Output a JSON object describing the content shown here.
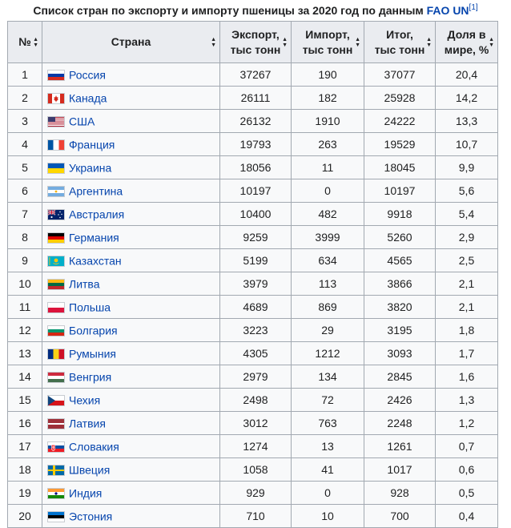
{
  "caption": {
    "title": "Список стран по экспорту и импорту пшеницы за 2020 год по данным",
    "link": "FAO UN",
    "ref": "[1]"
  },
  "headers": {
    "num": "№",
    "country": "Страна",
    "export_line1": "Экспорт,",
    "export_line2": "тыс тонн",
    "import_line1": "Импорт,",
    "import_line2": "тыс тонн",
    "total_line1": "Итог,",
    "total_line2": "тыс тонн",
    "share_line1": "Доля в",
    "share_line2": "мире, %"
  },
  "rows": [
    {
      "num": "1",
      "country": "Россия",
      "export": "37267",
      "import": "190",
      "total": "37077",
      "share": "20,4",
      "flag": "russia-flag-icon"
    },
    {
      "num": "2",
      "country": "Канада",
      "export": "26111",
      "import": "182",
      "total": "25928",
      "share": "14,2",
      "flag": "canada-flag-icon"
    },
    {
      "num": "3",
      "country": "США",
      "export": "26132",
      "import": "1910",
      "total": "24222",
      "share": "13,3",
      "flag": "usa-flag-icon"
    },
    {
      "num": "4",
      "country": "Франция",
      "export": "19793",
      "import": "263",
      "total": "19529",
      "share": "10,7",
      "flag": "france-flag-icon"
    },
    {
      "num": "5",
      "country": "Украина",
      "export": "18056",
      "import": "11",
      "total": "18045",
      "share": "9,9",
      "flag": "ukraine-flag-icon"
    },
    {
      "num": "6",
      "country": "Аргентина",
      "export": "10197",
      "import": "0",
      "total": "10197",
      "share": "5,6",
      "flag": "argentina-flag-icon"
    },
    {
      "num": "7",
      "country": "Австралия",
      "export": "10400",
      "import": "482",
      "total": "9918",
      "share": "5,4",
      "flag": "australia-flag-icon"
    },
    {
      "num": "8",
      "country": "Германия",
      "export": "9259",
      "import": "3999",
      "total": "5260",
      "share": "2,9",
      "flag": "germany-flag-icon"
    },
    {
      "num": "9",
      "country": "Казахстан",
      "export": "5199",
      "import": "634",
      "total": "4565",
      "share": "2,5",
      "flag": "kazakhstan-flag-icon"
    },
    {
      "num": "10",
      "country": "Литва",
      "export": "3979",
      "import": "113",
      "total": "3866",
      "share": "2,1",
      "flag": "lithuania-flag-icon"
    },
    {
      "num": "11",
      "country": "Польша",
      "export": "4689",
      "import": "869",
      "total": "3820",
      "share": "2,1",
      "flag": "poland-flag-icon"
    },
    {
      "num": "12",
      "country": "Болгария",
      "export": "3223",
      "import": "29",
      "total": "3195",
      "share": "1,8",
      "flag": "bulgaria-flag-icon"
    },
    {
      "num": "13",
      "country": "Румыния",
      "export": "4305",
      "import": "1212",
      "total": "3093",
      "share": "1,7",
      "flag": "romania-flag-icon"
    },
    {
      "num": "14",
      "country": "Венгрия",
      "export": "2979",
      "import": "134",
      "total": "2845",
      "share": "1,6",
      "flag": "hungary-flag-icon"
    },
    {
      "num": "15",
      "country": "Чехия",
      "export": "2498",
      "import": "72",
      "total": "2426",
      "share": "1,3",
      "flag": "czechia-flag-icon"
    },
    {
      "num": "16",
      "country": "Латвия",
      "export": "3012",
      "import": "763",
      "total": "2248",
      "share": "1,2",
      "flag": "latvia-flag-icon"
    },
    {
      "num": "17",
      "country": "Словакия",
      "export": "1274",
      "import": "13",
      "total": "1261",
      "share": "0,7",
      "flag": "slovakia-flag-icon"
    },
    {
      "num": "18",
      "country": "Швеция",
      "export": "1058",
      "import": "41",
      "total": "1017",
      "share": "0,6",
      "flag": "sweden-flag-icon"
    },
    {
      "num": "19",
      "country": "Индия",
      "export": "929",
      "import": "0",
      "total": "928",
      "share": "0,5",
      "flag": "india-flag-icon"
    },
    {
      "num": "20",
      "country": "Эстония",
      "export": "710",
      "import": "10",
      "total": "700",
      "share": "0,4",
      "flag": "estonia-flag-icon"
    }
  ],
  "colors": {
    "link": "#0645ad",
    "header_bg": "#eaecf0",
    "cell_bg": "#f8f9fa",
    "border": "#a2a9b1"
  }
}
